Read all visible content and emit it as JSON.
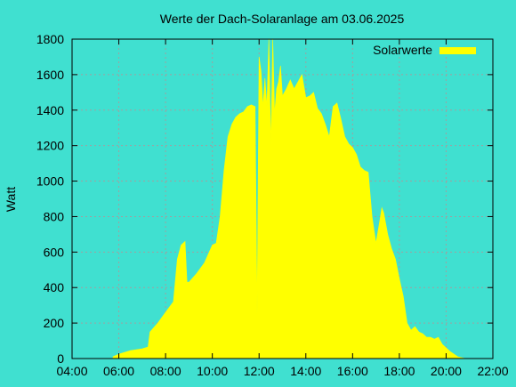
{
  "chart_data": {
    "type": "area",
    "title": "Werte der Dach-Solaranlage am 03.06.2025",
    "xlabel": "",
    "ylabel": "Watt",
    "x_ticks": [
      "04:00",
      "06:00",
      "08:00",
      "10:00",
      "12:00",
      "14:00",
      "16:00",
      "18:00",
      "20:00",
      "22:00"
    ],
    "y_ticks": [
      "0",
      "200",
      "400",
      "600",
      "800",
      "1000",
      "1200",
      "1400",
      "1600",
      "1800"
    ],
    "xlim": [
      "04:00",
      "22:00"
    ],
    "ylim": [
      0,
      1800
    ],
    "grid": true,
    "legend_position": "top-right",
    "series": [
      {
        "name": "Solarwerte",
        "color": "#ffff00",
        "x": [
          "05:45",
          "06:00",
          "06:30",
          "07:00",
          "07:15",
          "07:20",
          "07:40",
          "08:00",
          "08:20",
          "08:30",
          "08:40",
          "08:50",
          "08:55",
          "09:00",
          "09:20",
          "09:40",
          "10:00",
          "10:10",
          "10:20",
          "10:30",
          "10:40",
          "10:50",
          "11:00",
          "11:10",
          "11:20",
          "11:30",
          "11:40",
          "11:50",
          "11:55",
          "12:00",
          "12:05",
          "12:10",
          "12:15",
          "12:20",
          "12:25",
          "12:30",
          "12:35",
          "12:40",
          "12:45",
          "12:50",
          "12:55",
          "13:00",
          "13:10",
          "13:20",
          "13:30",
          "13:40",
          "13:50",
          "14:00",
          "14:10",
          "14:20",
          "14:30",
          "14:40",
          "14:50",
          "15:00",
          "15:10",
          "15:20",
          "15:30",
          "15:40",
          "15:50",
          "16:00",
          "16:10",
          "16:20",
          "16:30",
          "16:40",
          "16:50",
          "17:00",
          "17:10",
          "17:15",
          "17:20",
          "17:30",
          "17:40",
          "17:50",
          "18:00",
          "18:10",
          "18:20",
          "18:30",
          "18:40",
          "18:50",
          "19:00",
          "19:10",
          "19:20",
          "19:30",
          "19:40",
          "19:50",
          "20:00",
          "20:10",
          "20:20",
          "20:30",
          "20:40",
          "20:50"
        ],
        "values": [
          10,
          25,
          45,
          55,
          65,
          150,
          200,
          260,
          320,
          560,
          640,
          660,
          430,
          430,
          480,
          540,
          640,
          650,
          800,
          1060,
          1250,
          1320,
          1360,
          1380,
          1390,
          1420,
          1430,
          1420,
          250,
          1700,
          1620,
          1420,
          1580,
          1420,
          1800,
          1200,
          1800,
          1380,
          1520,
          1560,
          1650,
          1480,
          1520,
          1570,
          1520,
          1560,
          1600,
          1470,
          1480,
          1500,
          1410,
          1380,
          1320,
          1250,
          1420,
          1440,
          1350,
          1250,
          1210,
          1190,
          1150,
          1080,
          1060,
          1050,
          800,
          650,
          780,
          850,
          820,
          700,
          620,
          560,
          450,
          350,
          200,
          160,
          180,
          150,
          140,
          120,
          120,
          110,
          120,
          80,
          60,
          40,
          25,
          10,
          5,
          0
        ]
      }
    ]
  }
}
